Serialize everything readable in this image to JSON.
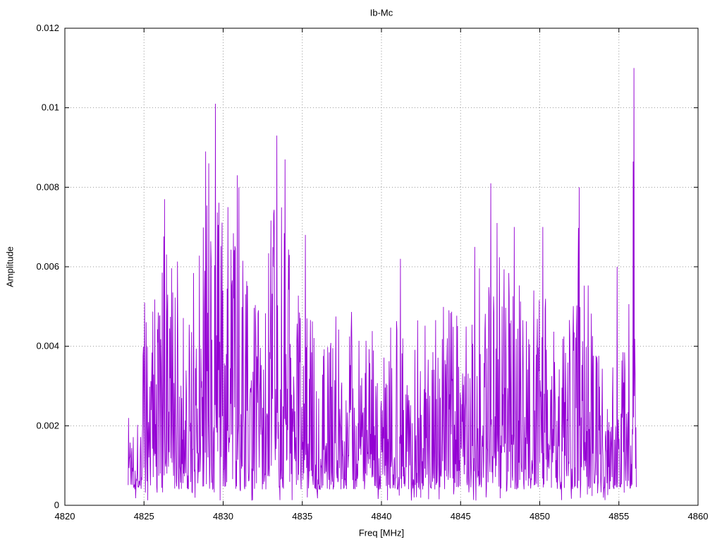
{
  "title": "Ib-Mc",
  "chart_data": {
    "type": "line",
    "title": "Ib-Mc",
    "xlabel": "Freq [MHz]",
    "ylabel": "Amplitude",
    "xlim": [
      4820,
      4860
    ],
    "ylim": [
      0,
      0.012
    ],
    "xticks": [
      4820,
      4825,
      4830,
      4835,
      4840,
      4845,
      4850,
      4855,
      4860
    ],
    "xtick_labels": [
      "4820",
      "4825",
      "4830",
      "4835",
      "4840",
      "4845",
      "4850",
      "4855",
      "4860"
    ],
    "yticks": [
      0,
      0.002,
      0.004,
      0.006,
      0.008,
      0.01,
      0.012
    ],
    "ytick_labels": [
      "0",
      "0.002",
      "0.004",
      "0.006",
      "0.008",
      "0.01",
      "0.012"
    ],
    "grid": true,
    "legend_position": "none",
    "line_color": "#9400d3",
    "grid_color": "#9a9a9a",
    "border_color": "#000000",
    "background": "#ffffff",
    "series_name": "Ib-Mc",
    "data_xrange": [
      4824.0,
      4856.1
    ],
    "num_points": 1300,
    "seed": 1337,
    "noise_floor": 0.0004,
    "envelope": [
      [
        4824.0,
        0.0034
      ],
      [
        4824.6,
        0.0028
      ],
      [
        4825.0,
        0.0059
      ],
      [
        4825.4,
        0.0065
      ],
      [
        4826.3,
        0.0077
      ],
      [
        4827.0,
        0.0071
      ],
      [
        4828.0,
        0.0066
      ],
      [
        4828.9,
        0.0089
      ],
      [
        4829.5,
        0.0101
      ],
      [
        4830.0,
        0.0075
      ],
      [
        4830.9,
        0.0083
      ],
      [
        4831.6,
        0.0062
      ],
      [
        4832.5,
        0.0063
      ],
      [
        4833.4,
        0.0093
      ],
      [
        4833.9,
        0.0087
      ],
      [
        4834.6,
        0.0061
      ],
      [
        4835.2,
        0.0068
      ],
      [
        4836.0,
        0.0052
      ],
      [
        4836.7,
        0.0052
      ],
      [
        4837.8,
        0.0058
      ],
      [
        4838.6,
        0.0047
      ],
      [
        4839.5,
        0.005
      ],
      [
        4840.3,
        0.0048
      ],
      [
        4841.2,
        0.0062
      ],
      [
        4842.0,
        0.005
      ],
      [
        4842.9,
        0.0055
      ],
      [
        4843.6,
        0.0057
      ],
      [
        4844.4,
        0.0056
      ],
      [
        4845.2,
        0.005
      ],
      [
        4845.9,
        0.0065
      ],
      [
        4846.9,
        0.0081
      ],
      [
        4847.3,
        0.0071
      ],
      [
        4848.4,
        0.007
      ],
      [
        4849.3,
        0.0058
      ],
      [
        4850.2,
        0.007
      ],
      [
        4851.0,
        0.0048
      ],
      [
        4851.8,
        0.005
      ],
      [
        4852.5,
        0.008
      ],
      [
        4853.4,
        0.0051
      ],
      [
        4854.2,
        0.0048
      ],
      [
        4854.9,
        0.006
      ],
      [
        4855.5,
        0.0037
      ],
      [
        4855.95,
        0.011
      ],
      [
        4856.1,
        0.0008
      ]
    ],
    "peaks": [
      [
        4826.3,
        0.0077
      ],
      [
        4828.9,
        0.0089
      ],
      [
        4829.1,
        0.0086
      ],
      [
        4829.5,
        0.0101
      ],
      [
        4830.3,
        0.0075
      ],
      [
        4830.9,
        0.0083
      ],
      [
        4831.0,
        0.008
      ],
      [
        4833.4,
        0.0093
      ],
      [
        4833.9,
        0.0087
      ],
      [
        4835.2,
        0.0068
      ],
      [
        4841.2,
        0.0062
      ],
      [
        4845.9,
        0.0065
      ],
      [
        4846.9,
        0.0081
      ],
      [
        4847.3,
        0.0071
      ],
      [
        4848.4,
        0.007
      ],
      [
        4850.2,
        0.007
      ],
      [
        4852.5,
        0.008
      ],
      [
        4854.9,
        0.006
      ],
      [
        4855.95,
        0.011
      ]
    ]
  }
}
